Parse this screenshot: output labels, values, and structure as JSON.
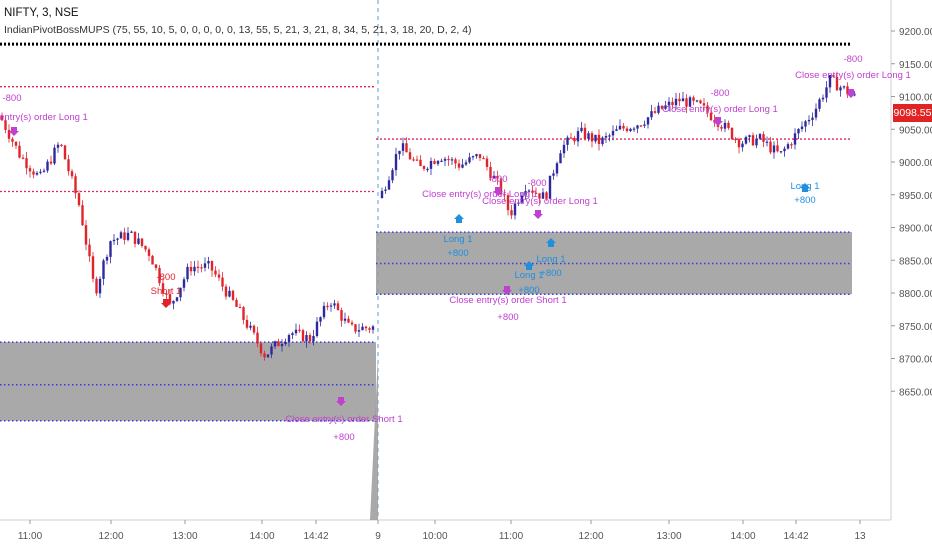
{
  "header": {
    "symbol": "NIFTY, 3, NSE",
    "indicator": "IndianPivotBossMUPS (75, 55, 10, 5, 0, 0, 0, 0, 0, 13, 55, 5, 21, 3, 21, 8, 34, 5, 21, 3, 18, 20, D, 2, 4)"
  },
  "last_price": "9098.55",
  "colors": {
    "bull": "#2e2a9e",
    "bear": "#e0242c",
    "pivot_line": "#e0245e",
    "support_zone": "#9a9a9a",
    "support_line": "#3b3bd8",
    "resistance_dots": "#000000",
    "long_signal": "#1f8fe0",
    "strategy_text": "#c040d0",
    "last_price_bg": "#e02424"
  },
  "chart_data": {
    "type": "candlestick",
    "y_axis": {
      "ticks": [
        9200,
        9150,
        9100,
        9050,
        9000,
        8950,
        8900,
        8850,
        8800,
        8750,
        8700,
        8650
      ],
      "ylim": [
        8605,
        9235
      ]
    },
    "x_axis": {
      "ticks": [
        "11:00",
        "12:00",
        "13:00",
        "14:00",
        "14:42",
        "9",
        "10:00",
        "11:00",
        "12:00",
        "13:00",
        "14:00",
        "14:42",
        "13"
      ]
    },
    "sessions": [
      {
        "day": "prior",
        "approx_close_path": [
          [
            0,
            9070
          ],
          [
            20,
            9010
          ],
          [
            40,
            8975
          ],
          [
            60,
            9030
          ],
          [
            80,
            8930
          ],
          [
            95,
            8800
          ],
          [
            110,
            8880
          ],
          [
            130,
            8890
          ],
          [
            150,
            8860
          ],
          [
            170,
            8780
          ],
          [
            190,
            8840
          ],
          [
            210,
            8840
          ],
          [
            240,
            8770
          ],
          [
            265,
            8705
          ],
          [
            290,
            8740
          ],
          [
            310,
            8730
          ],
          [
            330,
            8790
          ],
          [
            350,
            8745
          ],
          [
            375,
            8748
          ]
        ]
      },
      {
        "day": "9",
        "approx_close_path": [
          [
            380,
            8945
          ],
          [
            400,
            9025
          ],
          [
            420,
            8990
          ],
          [
            440,
            9010
          ],
          [
            460,
            8995
          ],
          [
            480,
            9010
          ],
          [
            500,
            8960
          ],
          [
            510,
            8920
          ],
          [
            525,
            8965
          ],
          [
            545,
            8945
          ],
          [
            560,
            9020
          ],
          [
            580,
            9045
          ],
          [
            600,
            9030
          ],
          [
            620,
            9050
          ],
          [
            640,
            9060
          ],
          [
            660,
            9080
          ],
          [
            680,
            9095
          ],
          [
            700,
            9085
          ],
          [
            720,
            9060
          ],
          [
            740,
            9030
          ],
          [
            760,
            9035
          ],
          [
            780,
            9010
          ],
          [
            800,
            9050
          ],
          [
            815,
            9080
          ],
          [
            830,
            9125
          ],
          [
            845,
            9110
          ],
          [
            855,
            9098
          ]
        ]
      }
    ],
    "levels": [
      {
        "name": "resistance",
        "value": 9180,
        "style": "dotted-black"
      },
      {
        "name": "pivot",
        "value": 9115,
        "style": "dotted-red",
        "session": "prior"
      },
      {
        "name": "pivot",
        "value": 8955,
        "style": "dotted-red",
        "session": "prior"
      },
      {
        "name": "pivot",
        "value": 9035,
        "style": "dotted-red",
        "session": "9"
      },
      {
        "name": "zone",
        "top": 8893,
        "bottom": 8798,
        "mid": 8845,
        "session": "9"
      },
      {
        "name": "zone",
        "top": 8725,
        "bottom": 8605,
        "mid": 8660,
        "session": "prior"
      }
    ],
    "annotations": {
      "texts": [
        "-800",
        "Close entry(s) order Long 1",
        "-800",
        "Short 1",
        "Close entry(s) order Short 1",
        "+800",
        "Long 1",
        "+800",
        "-800",
        "Close entry(s) order Long 1",
        "-800",
        "Close entry(s) order Long 1",
        "Long 1",
        "+800",
        "Close entry(s) order Short 1",
        "+800",
        "Long 1",
        "+800",
        "-800",
        "Close entry(s) order Long 1",
        "Long 1",
        "+800",
        "-800",
        "Close entry(s) order Long 1"
      ]
    }
  }
}
